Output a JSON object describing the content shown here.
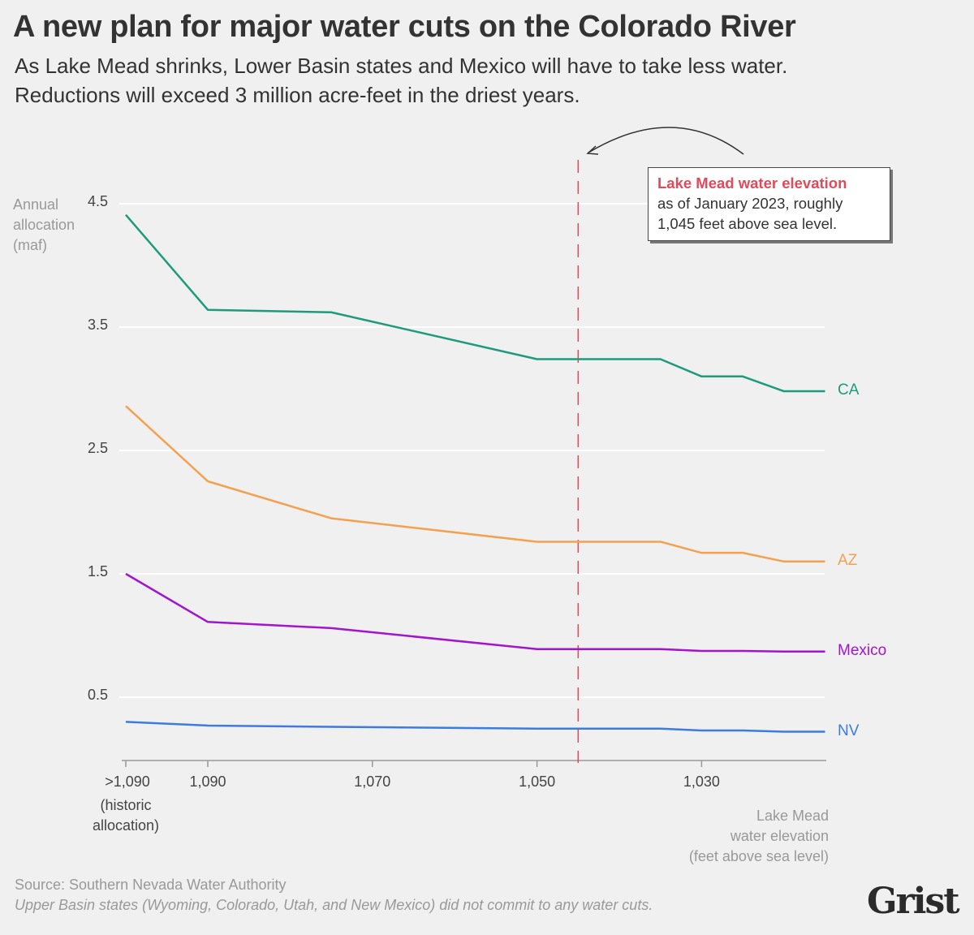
{
  "title": "A new plan for major water cuts on the Colorado River",
  "subtitle_lines": [
    "As Lake Mead shrinks, Lower Basin states and Mexico will have to take less water.",
    "Reductions will exceed 3 million acre-feet in the driest years."
  ],
  "source": "Source: Southern Nevada Water Authority",
  "note": "Upper Basin states (Wyoming, Colorado, Utah, and New Mexico) did not commit to any water cuts.",
  "logo": "Grist",
  "annotation": {
    "heading": "Lake Mead water elevation",
    "line1": "as of January 2023, roughly",
    "line2": "1,045 feet above sea level."
  },
  "chart_data": {
    "type": "line",
    "title": "A new plan for major water cuts on the Colorado River",
    "ylabel": "Annual allocation (maf)",
    "xlabel": "Lake Mead water elevation (feet above sea level)",
    "xlabel_lines": [
      "Lake Mead",
      "water elevation",
      "(feet above sea level)"
    ],
    "ylabel_lines": [
      "Annual",
      "allocation",
      "(maf)"
    ],
    "x_reversed": true,
    "ylim": [
      0,
      4.6
    ],
    "yticks": [
      "4.5",
      "3.5",
      "2.5",
      "1.5",
      "0.5"
    ],
    "ytick_values": [
      4.5,
      3.5,
      2.5,
      1.5,
      0.5
    ],
    "xticks": [
      ">1,090",
      "1,090",
      "1,070",
      "1,050",
      "1,030"
    ],
    "xtick_values": [
      "historic",
      1090,
      1070,
      1050,
      1030
    ],
    "historic_label_lines": [
      "(historic",
      "allocation)"
    ],
    "x": [
      "historic",
      1090,
      1075,
      1050,
      1035,
      1030,
      1025,
      1020,
      1015
    ],
    "grid": true,
    "reference_line": {
      "x": 1045,
      "color": "#e04a5a",
      "style": "dashed"
    },
    "series": [
      {
        "name": "CA",
        "color": "#1e9a7c",
        "values": [
          4.41,
          3.64,
          3.62,
          3.24,
          3.24,
          3.1,
          3.1,
          2.98,
          2.98
        ]
      },
      {
        "name": "AZ",
        "color": "#f3a14f",
        "values": [
          2.86,
          2.25,
          1.95,
          1.76,
          1.76,
          1.67,
          1.67,
          1.6,
          1.6
        ]
      },
      {
        "name": "Mexico",
        "color": "#a314cf",
        "values": [
          1.5,
          1.11,
          1.06,
          0.89,
          0.89,
          0.875,
          0.875,
          0.87,
          0.87
        ]
      },
      {
        "name": "NV",
        "color": "#3c7be0",
        "values": [
          0.3,
          0.27,
          0.26,
          0.245,
          0.245,
          0.23,
          0.23,
          0.22,
          0.22
        ]
      }
    ]
  }
}
